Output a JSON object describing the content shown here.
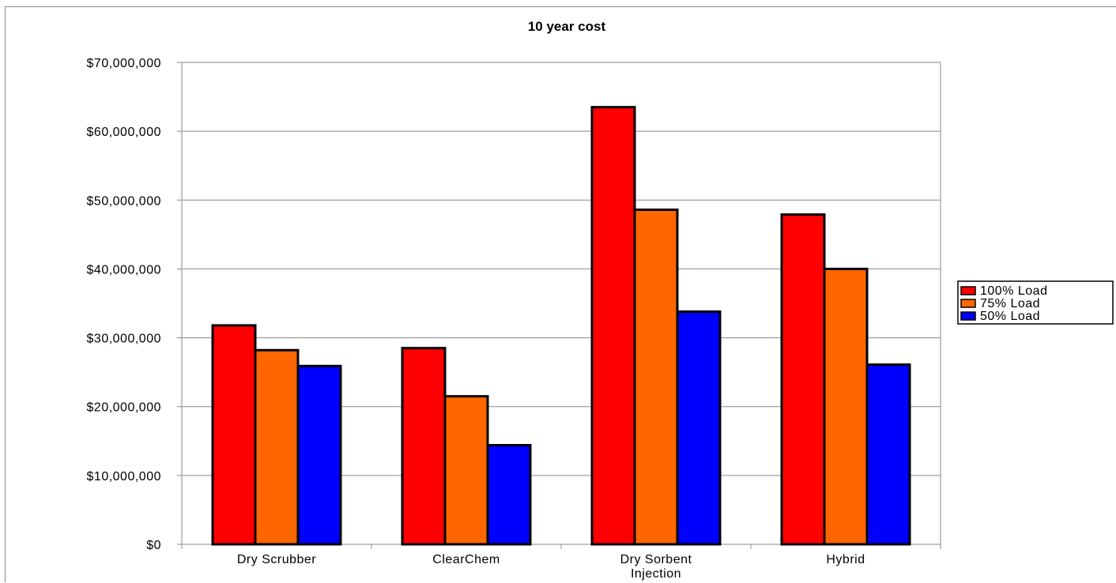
{
  "chart_data": {
    "type": "bar",
    "title": "10 year cost",
    "categories": [
      [
        "Dry Scrubber"
      ],
      [
        "ClearChem"
      ],
      [
        "Dry Sorbent",
        "Injection"
      ],
      [
        "Hybrid"
      ]
    ],
    "series": [
      {
        "name": "100% Load",
        "color": "#ff0000",
        "values": [
          31800000,
          28500000,
          63500000,
          47900000
        ]
      },
      {
        "name": "75% Load",
        "color": "#ff6600",
        "values": [
          28200000,
          21500000,
          48600000,
          40000000
        ]
      },
      {
        "name": "50% Load",
        "color": "#0000ff",
        "values": [
          25900000,
          14400000,
          33800000,
          26100000
        ]
      }
    ],
    "yticks": [
      "$0",
      "$10,000,000",
      "$20,000,000",
      "$30,000,000",
      "$40,000,000",
      "$50,000,000",
      "$60,000,000",
      "$70,000,000"
    ],
    "ylim": [
      0,
      70000000
    ],
    "grid": true,
    "legend_position": "right"
  }
}
